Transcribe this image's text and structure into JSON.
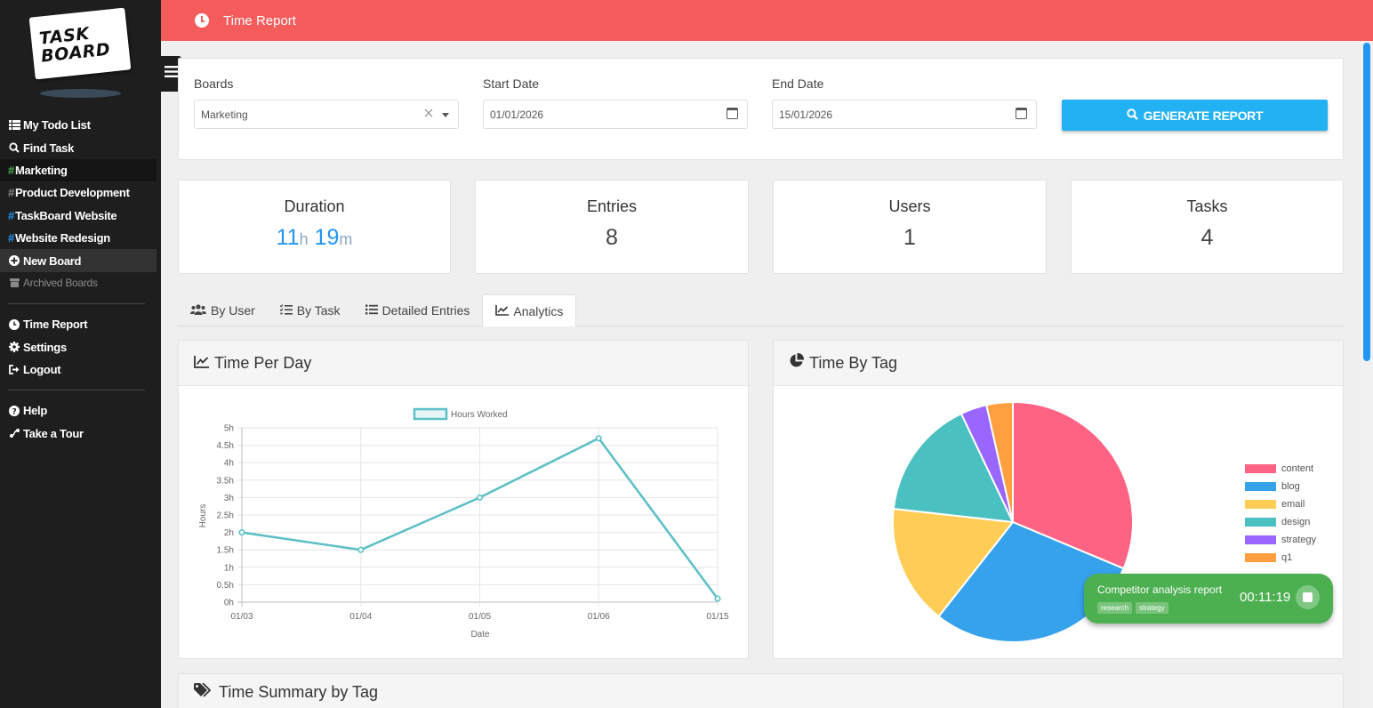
{
  "app": {
    "logo_line1": "TASK",
    "logo_line2": "BOARD"
  },
  "sidebar": {
    "main": [
      {
        "label": "My Todo List"
      },
      {
        "label": "Find Task"
      }
    ],
    "boards": [
      {
        "label": "Marketing",
        "hash_color": "#4caf50"
      },
      {
        "label": "Product Development",
        "hash_color": "#888888"
      },
      {
        "label": "TaskBoard Website",
        "hash_color": "#2196f3"
      },
      {
        "label": "Website Redesign",
        "hash_color": "#2196f3"
      }
    ],
    "new_board": "New Board",
    "archived": "Archived Boards",
    "tools": [
      {
        "label": "Time Report"
      },
      {
        "label": "Settings"
      },
      {
        "label": "Logout"
      }
    ],
    "help": [
      {
        "label": "Help"
      },
      {
        "label": "Take a Tour"
      }
    ]
  },
  "header": {
    "title": "Time Report"
  },
  "filters": {
    "boards_label": "Boards",
    "boards_value": "Marketing",
    "start_label": "Start Date",
    "start_value": "01/01/2026",
    "end_label": "End Date",
    "end_value": "15/01/2026",
    "generate_label": "GENERATE REPORT"
  },
  "stats": {
    "duration_label": "Duration",
    "duration_hours": "11",
    "duration_h_unit": "h",
    "duration_minutes": "19",
    "duration_m_unit": "m",
    "entries_label": "Entries",
    "entries_value": "8",
    "users_label": "Users",
    "users_value": "1",
    "tasks_label": "Tasks",
    "tasks_value": "4"
  },
  "tabs": [
    {
      "label": "By User"
    },
    {
      "label": "By Task"
    },
    {
      "label": "Detailed Entries"
    },
    {
      "label": "Analytics"
    }
  ],
  "panels": {
    "time_per_day": "Time Per Day",
    "time_by_tag": "Time By Tag",
    "time_summary": "Time Summary by Tag"
  },
  "chart_data": [
    {
      "type": "line",
      "title": "",
      "xlabel": "Date",
      "ylabel": "Hours",
      "x": [
        "01/03",
        "01/04",
        "01/05",
        "01/06",
        "01/15"
      ],
      "series": [
        {
          "name": "Hours Worked",
          "values": [
            2.0,
            1.5,
            3.0,
            4.7,
            0.1
          ],
          "color": "#5bbfc5"
        }
      ],
      "ylim": [
        0,
        5
      ],
      "yticks": [
        "0h",
        "0.5h",
        "1h",
        "1.5h",
        "2h",
        "2.5h",
        "3h",
        "3.5h",
        "4h",
        "4.5h",
        "5h"
      ],
      "grid": true,
      "legend": "top"
    },
    {
      "type": "pie",
      "title": "",
      "labels": [
        "content",
        "blog",
        "email",
        "design",
        "strategy",
        "q1"
      ],
      "values": [
        31,
        29,
        16,
        16,
        3.5,
        3.5
      ],
      "colors": [
        "#ff6384",
        "#36a2eb",
        "#ffcd56",
        "#4bc0c0",
        "#9966ff",
        "#ff9f40"
      ],
      "legend": "right"
    }
  ],
  "timer": {
    "title": "Competitor analysis report",
    "tags": [
      "research",
      "strategy"
    ],
    "time": "00:11:19"
  }
}
